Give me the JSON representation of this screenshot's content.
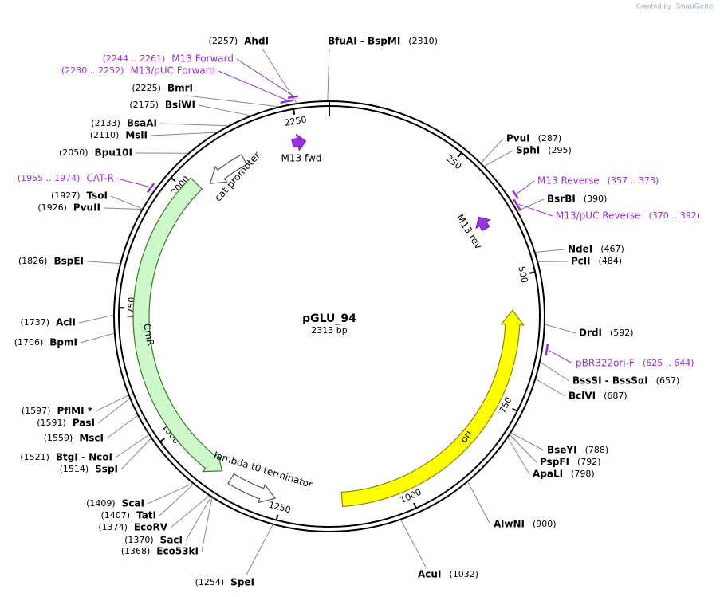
{
  "header": {
    "credit": "Created by",
    "brand": "SnapGene"
  },
  "plasmid": {
    "name": "pGLU_94",
    "size": {
      "value": 2313,
      "label": "2313 bp"
    }
  },
  "ticks": [
    250,
    500,
    750,
    1000,
    1250,
    1500,
    1750,
    2000,
    2250
  ],
  "enzymes": [
    {
      "name": "PvuI",
      "position": {
        "value": 287,
        "label": "(287)"
      }
    },
    {
      "name": "SphI",
      "position": {
        "value": 295,
        "label": "(295)"
      }
    },
    {
      "name": "BsrBI",
      "position": {
        "value": 390,
        "label": "(390)"
      }
    },
    {
      "name": "NdeI",
      "position": {
        "value": 467,
        "label": "(467)"
      }
    },
    {
      "name": "PclI",
      "position": {
        "value": 484,
        "label": "(484)"
      }
    },
    {
      "name": "DrdI",
      "position": {
        "value": 592,
        "label": "(592)"
      }
    },
    {
      "name": "BssSI  -  BssSαI",
      "position": {
        "value": 657,
        "label": "(657)"
      }
    },
    {
      "name": "BclVI",
      "position": {
        "value": 687,
        "label": "(687)"
      }
    },
    {
      "name": "BseYI",
      "position": {
        "value": 788,
        "label": "(788)"
      }
    },
    {
      "name": "PspFI",
      "position": {
        "value": 792,
        "label": "(792)"
      }
    },
    {
      "name": "ApaLI",
      "position": {
        "value": 798,
        "label": "(798)"
      }
    },
    {
      "name": "AlwNI",
      "position": {
        "value": 900,
        "label": "(900)"
      }
    },
    {
      "name": "AcuI",
      "position": {
        "value": 1032,
        "label": "(1032)"
      }
    },
    {
      "name": "SpeI",
      "position": {
        "value": 1254,
        "label": "(1254)"
      }
    },
    {
      "name": "Eco53kI",
      "position": {
        "value": 1368,
        "label": "(1368)"
      }
    },
    {
      "name": "SacI",
      "position": {
        "value": 1370,
        "label": "(1370)"
      }
    },
    {
      "name": "EcoRV",
      "position": {
        "value": 1374,
        "label": "(1374)"
      }
    },
    {
      "name": "TatI",
      "position": {
        "value": 1407,
        "label": "(1407)"
      }
    },
    {
      "name": "ScaI",
      "position": {
        "value": 1409,
        "label": "(1409)"
      }
    },
    {
      "name": "SspI",
      "position": {
        "value": 1514,
        "label": "(1514)"
      }
    },
    {
      "name": "BtgI  -  NcoI",
      "position": {
        "value": 1521,
        "label": "(1521)"
      }
    },
    {
      "name": "MscI",
      "position": {
        "value": 1559,
        "label": "(1559)"
      }
    },
    {
      "name": "PasI",
      "position": {
        "value": 1591,
        "label": "(1591)"
      }
    },
    {
      "name": "PflMI *",
      "position": {
        "value": 1597,
        "label": "(1597)"
      }
    },
    {
      "name": "BpmI",
      "position": {
        "value": 1706,
        "label": "(1706)"
      }
    },
    {
      "name": "AclI",
      "position": {
        "value": 1737,
        "label": "(1737)"
      }
    },
    {
      "name": "BspEI",
      "position": {
        "value": 1826,
        "label": "(1826)"
      }
    },
    {
      "name": "PvuII",
      "position": {
        "value": 1926,
        "label": "(1926)"
      }
    },
    {
      "name": "TsoI",
      "position": {
        "value": 1927,
        "label": "(1927)"
      }
    },
    {
      "name": "Bpu10I",
      "position": {
        "value": 2050,
        "label": "(2050)"
      }
    },
    {
      "name": "MslI",
      "position": {
        "value": 2110,
        "label": "(2110)"
      }
    },
    {
      "name": "BsaAI",
      "position": {
        "value": 2133,
        "label": "(2133)"
      }
    },
    {
      "name": "BsiWI",
      "position": {
        "value": 2175,
        "label": "(2175)"
      }
    },
    {
      "name": "BmrI",
      "position": {
        "value": 2225,
        "label": "(2225)"
      }
    },
    {
      "name": "AhdI",
      "position": {
        "value": 2257,
        "label": "(2257)"
      }
    },
    {
      "name": "BfuAI  -  BspMI",
      "position": {
        "value": 2310,
        "label": "(2310)"
      }
    }
  ],
  "primers": [
    {
      "name": "M13 Forward",
      "range": {
        "start": 2244,
        "end": 2261,
        "label": "(2244 .. 2261)"
      }
    },
    {
      "name": "M13/pUC Forward",
      "range": {
        "start": 2230,
        "end": 2252,
        "label": "(2230 .. 2252)"
      }
    },
    {
      "name": "CAT-R",
      "range": {
        "start": 1955,
        "end": 1974,
        "label": "(1955 .. 1974)"
      }
    },
    {
      "name": "M13 Reverse",
      "range": {
        "start": 357,
        "end": 373,
        "label": "(357 .. 373)"
      }
    },
    {
      "name": "M13/pUC Reverse",
      "range": {
        "start": 370,
        "end": 392,
        "label": "(370 .. 392)"
      }
    },
    {
      "name": "pBR322ori-F",
      "range": {
        "start": 625,
        "end": 644,
        "label": "(625 .. 644)"
      }
    }
  ],
  "features": [
    {
      "name": "cat promoter",
      "start": 2044,
      "end": 2130,
      "direction": "reverse",
      "color": "#ffffff"
    },
    {
      "name": "CmR",
      "start": 1380,
      "end": 2024,
      "direction": "reverse",
      "color": "#ccf8cc"
    },
    {
      "name": "lambda t0 terminator",
      "start": 1263,
      "end": 1357,
      "direction": "reverse",
      "color": "#ffffff"
    },
    {
      "name": "ori",
      "start": 566,
      "end": 1131,
      "direction": "reverse",
      "color": "#ffff00"
    },
    {
      "name": "M13 fwd",
      "start": 2236,
      "end": 2264,
      "direction": "forward",
      "color": "#9933dd"
    },
    {
      "name": "M13 rev",
      "start": 362,
      "end": 390,
      "direction": "reverse",
      "color": "#9933dd"
    }
  ]
}
